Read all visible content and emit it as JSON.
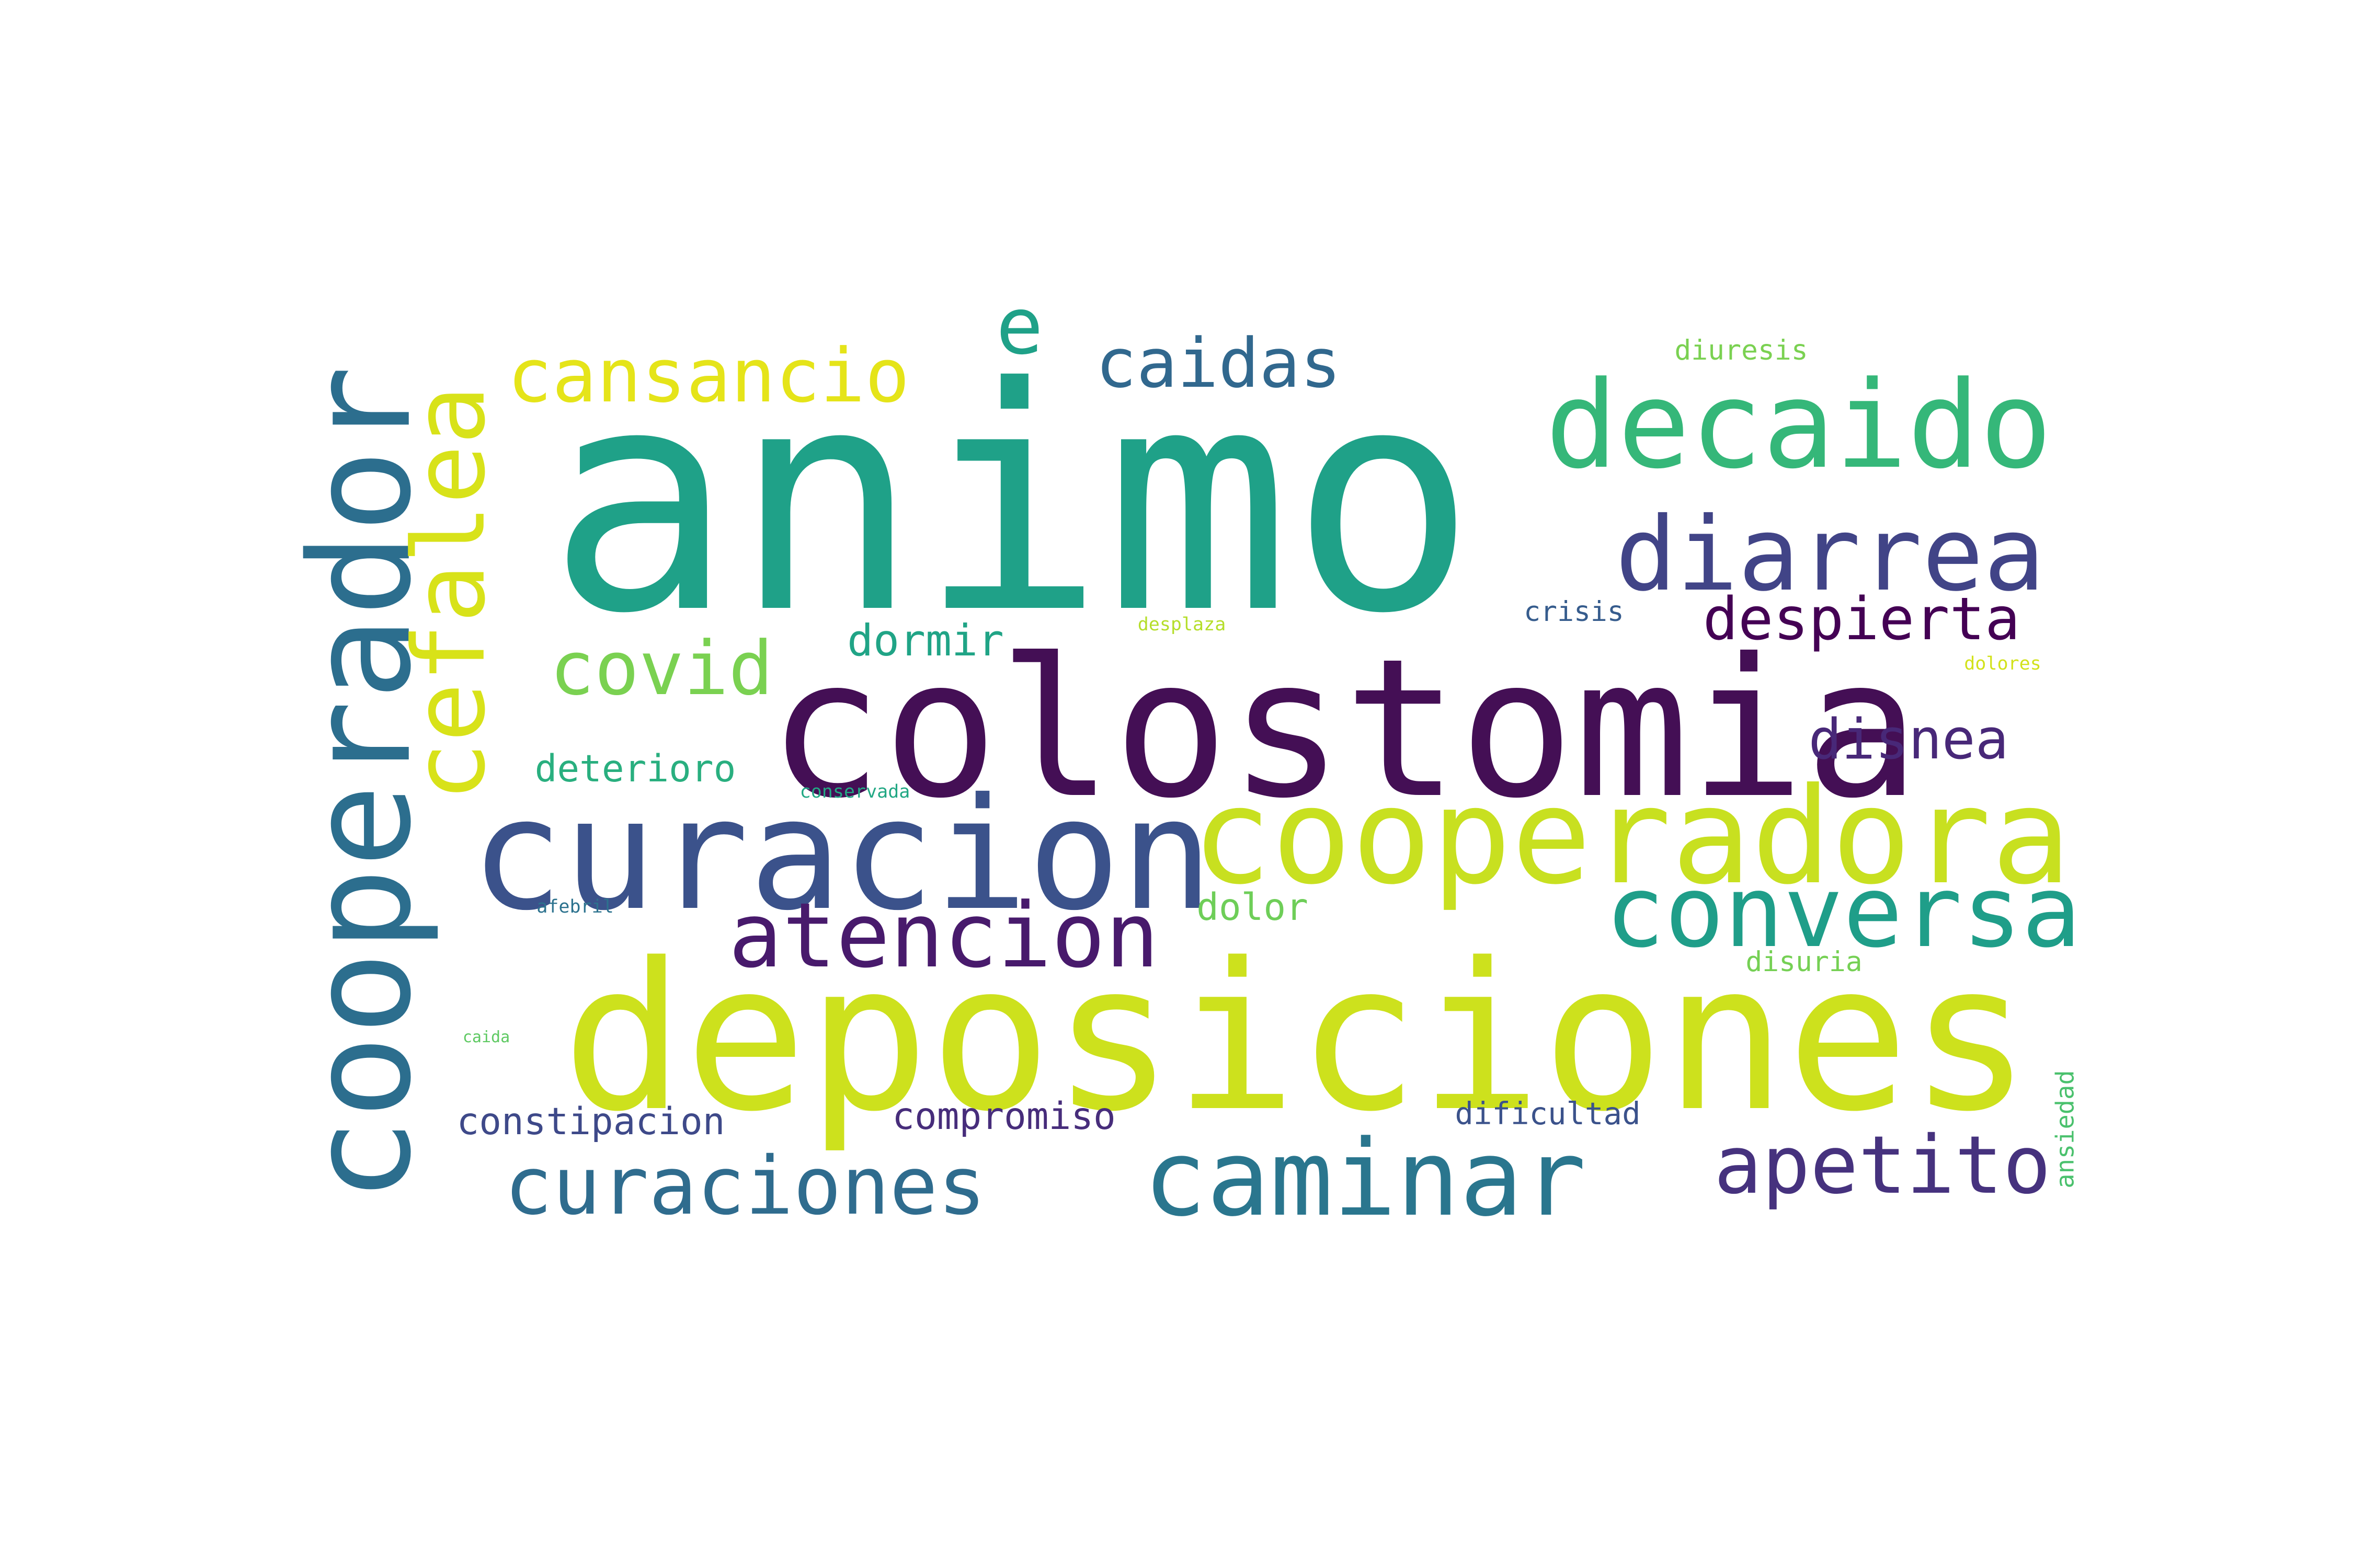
{
  "words": [
    {
      "text": "animo",
      "color": "#1fa188",
      "weight": 1.0
    },
    {
      "text": "colostomia",
      "color": "#440f55",
      "weight": 0.62
    },
    {
      "text": "deposiciones",
      "color": "#cde11d",
      "weight": 0.66
    },
    {
      "text": "curacion",
      "color": "#3b528b",
      "weight": 0.5
    },
    {
      "text": "cooperadora",
      "color": "#c8e020",
      "weight": 0.43
    },
    {
      "text": "cooperador",
      "color": "#2c6e8e",
      "weight": 0.45
    },
    {
      "text": "decaido",
      "color": "#35b779",
      "weight": 0.39
    },
    {
      "text": "diarrea",
      "color": "#414487",
      "weight": 0.33
    },
    {
      "text": "cefalea",
      "color": "#d8e219",
      "weight": 0.32
    },
    {
      "text": "conversa",
      "color": "#1f9e89",
      "weight": 0.32
    },
    {
      "text": "caminar",
      "color": "#2a768e",
      "weight": 0.34
    },
    {
      "text": "atencion",
      "color": "#481a6c",
      "weight": 0.29
    },
    {
      "text": "curaciones",
      "color": "#2f6c8e",
      "weight": 0.26
    },
    {
      "text": "apetito",
      "color": "#46327e",
      "weight": 0.26
    },
    {
      "text": "cansancio",
      "color": "#e5e419",
      "weight": 0.24
    },
    {
      "text": "caidas",
      "color": "#31688e",
      "weight": 0.22
    },
    {
      "text": "covid",
      "color": "#7ad151",
      "weight": 0.24
    },
    {
      "text": "despierta",
      "color": "#440154",
      "weight": 0.19
    },
    {
      "text": "disnea",
      "color": "#482878",
      "weight": 0.18
    },
    {
      "text": "e",
      "color": "#1fa188",
      "weight": 0.25
    },
    {
      "text": "dormir",
      "color": "#20a486",
      "weight": 0.14
    },
    {
      "text": "deterioro",
      "color": "#29af7f",
      "weight": 0.12
    },
    {
      "text": "constipacion",
      "color": "#3e4989",
      "weight": 0.12
    },
    {
      "text": "compromiso",
      "color": "#472d7b",
      "weight": 0.12
    },
    {
      "text": "dolor",
      "color": "#6ece58",
      "weight": 0.12
    },
    {
      "text": "dificultad",
      "color": "#3b528b",
      "weight": 0.1
    },
    {
      "text": "crisis",
      "color": "#365c8d",
      "weight": 0.09
    },
    {
      "text": "disuria",
      "color": "#75d054",
      "weight": 0.09
    },
    {
      "text": "diuresis",
      "color": "#7ad151",
      "weight": 0.09
    },
    {
      "text": "ansiedad",
      "color": "#4ac16d",
      "weight": 0.08
    },
    {
      "text": "conservada",
      "color": "#22a884",
      "weight": 0.06
    },
    {
      "text": "afebril",
      "color": "#2c728e",
      "weight": 0.06
    },
    {
      "text": "desplaza",
      "color": "#b5de2b",
      "weight": 0.06
    },
    {
      "text": "dolores",
      "color": "#d2e21b",
      "weight": 0.06
    },
    {
      "text": "caida",
      "color": "#5ec962",
      "weight": 0.05
    }
  ]
}
